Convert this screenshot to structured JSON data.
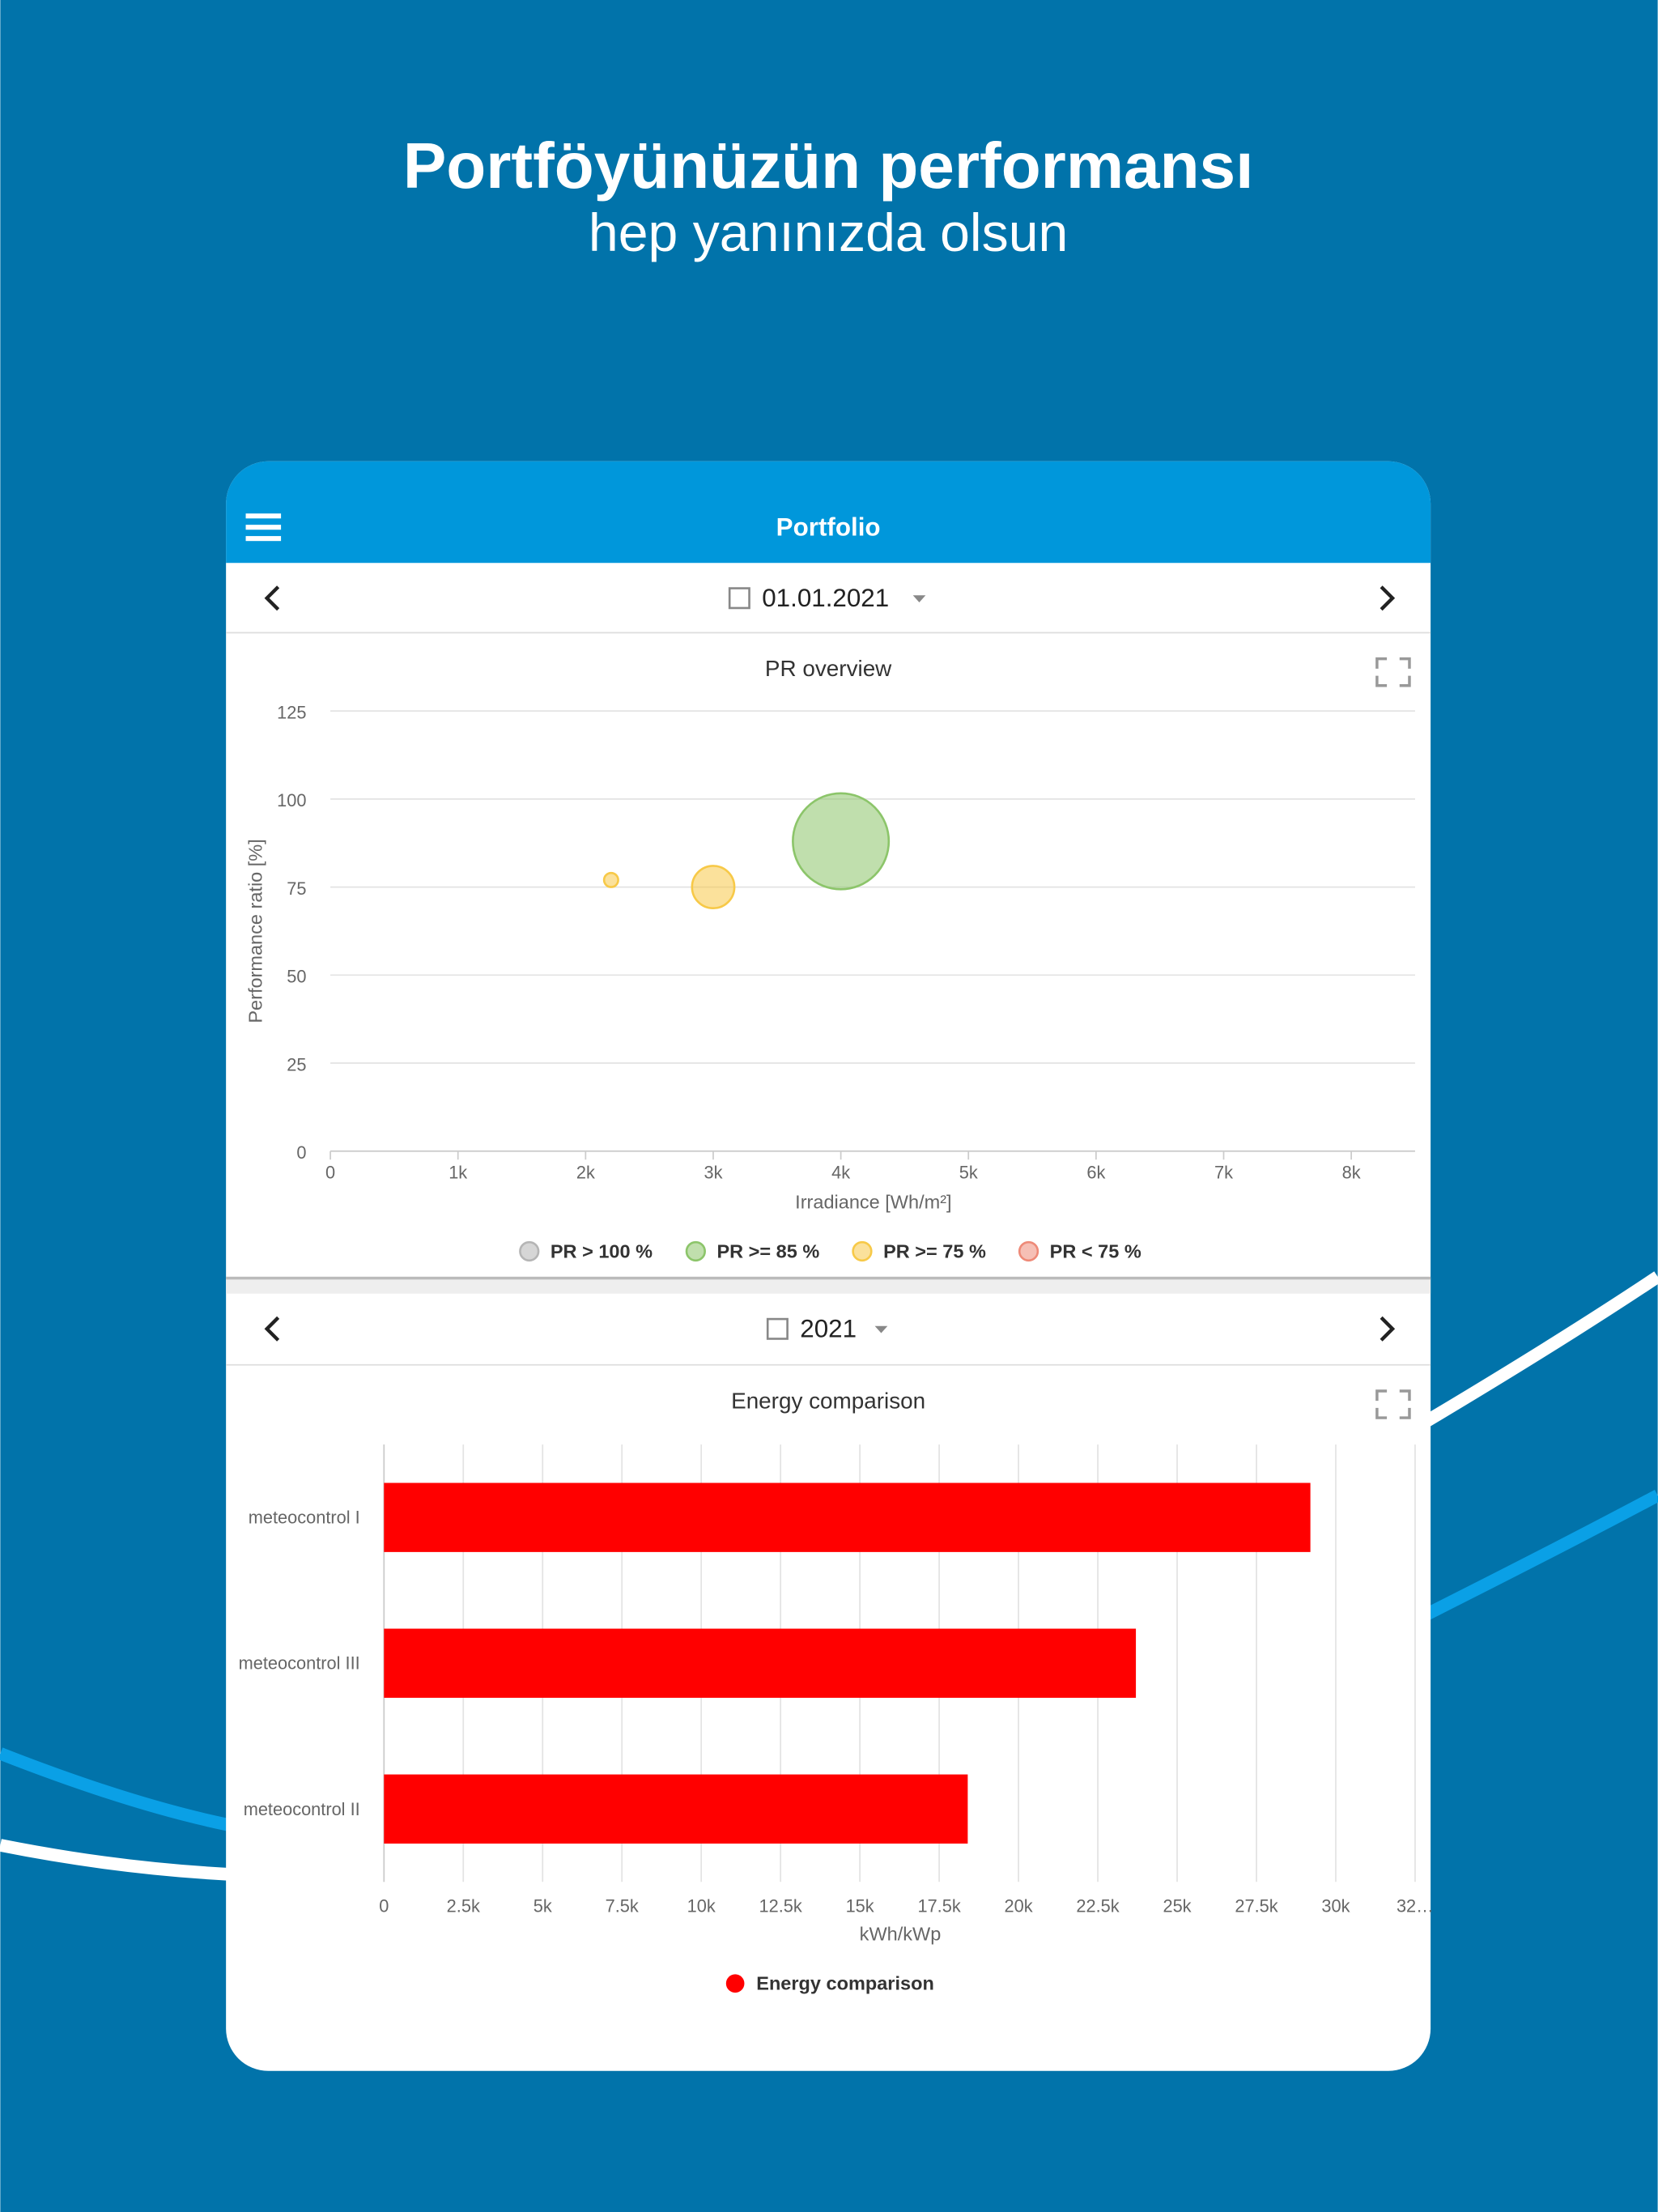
{
  "header": {
    "title": "Portföyünüzün performansı",
    "subtitle": "hep yanınızda olsun"
  },
  "app_bar": {
    "title": "Portfolio"
  },
  "pr_date": "01.01.2021",
  "energy_date": "2021",
  "chart_data": [
    {
      "type": "bubble",
      "title": "PR overview",
      "x_label": "Irradiance [Wh/m²]",
      "y_label": "Performance ratio [%]",
      "xlim": [
        0,
        8500
      ],
      "xticks": [
        0,
        {
          "value": 1000,
          "label": "1k"
        },
        {
          "value": 2000,
          "label": "2k"
        },
        {
          "value": 3000,
          "label": "3k"
        },
        {
          "value": 4000,
          "label": "4k"
        },
        {
          "value": 5000,
          "label": "5k"
        },
        {
          "value": 6000,
          "label": "6k"
        },
        {
          "value": 7000,
          "label": "7k"
        },
        {
          "value": 8000,
          "label": "8k"
        }
      ],
      "ylim": [
        0,
        125
      ],
      "yticks": [
        0,
        25,
        50,
        75,
        100,
        125
      ],
      "grid": true,
      "series": [
        {
          "name": "PR > 100 %",
          "color": "#b5b5b5",
          "x": [],
          "values": [],
          "sizes": []
        },
        {
          "name": "PR >= 85 %",
          "color": "#8cc56a",
          "x": [
            4000
          ],
          "values": [
            88
          ],
          "sizes": [
            34
          ]
        },
        {
          "name": "PR >= 75 %",
          "color": "#f7c948",
          "x": [
            2200,
            3000
          ],
          "values": [
            77,
            75
          ],
          "sizes": [
            5,
            15
          ]
        },
        {
          "name": "PR < 75 %",
          "color": "#ee8a78",
          "x": [],
          "values": [],
          "sizes": []
        }
      ]
    },
    {
      "type": "bar",
      "orientation": "horizontal",
      "title": "Energy comparison",
      "x_label": "kWh/kWp",
      "categories": [
        "meteocontrol I",
        "meteocontrol III",
        "meteocontrol II"
      ],
      "xlim": [
        0,
        32500
      ],
      "xticks": [
        0,
        {
          "value": 2500,
          "label": "2.5k"
        },
        {
          "value": 5000,
          "label": "5k"
        },
        {
          "value": 7500,
          "label": "7.5k"
        },
        {
          "value": 10000,
          "label": "10k"
        },
        {
          "value": 12500,
          "label": "12.5k"
        },
        {
          "value": 15000,
          "label": "15k"
        },
        {
          "value": 17500,
          "label": "17.5k"
        },
        {
          "value": 20000,
          "label": "20k"
        },
        {
          "value": 22500,
          "label": "22.5k"
        },
        {
          "value": 25000,
          "label": "25k"
        },
        {
          "value": 27500,
          "label": "27.5k"
        },
        {
          "value": 30000,
          "label": "30k"
        },
        {
          "value": 32500,
          "label": "32…"
        }
      ],
      "grid": true,
      "series": [
        {
          "name": "Energy comparison",
          "color": "#ff0000",
          "values": [
            29200,
            23700,
            18400
          ]
        }
      ]
    }
  ]
}
